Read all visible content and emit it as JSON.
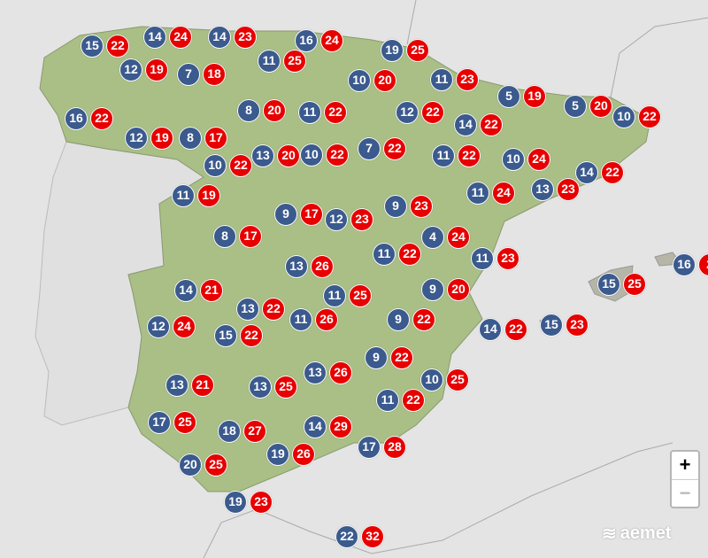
{
  "colors": {
    "min": "#3b5a8e",
    "max": "#e80000",
    "land": "#a9bf86",
    "sea": "#e4e4e4"
  },
  "stations": [
    {
      "min": "15",
      "max": "22"
    },
    {
      "min": "14",
      "max": "24"
    },
    {
      "min": "14",
      "max": "23"
    },
    {
      "min": "16",
      "max": "24"
    },
    {
      "min": "19",
      "max": "25"
    },
    {
      "min": "12",
      "max": "19"
    },
    {
      "min": "7",
      "max": "18"
    },
    {
      "min": "11",
      "max": "25"
    },
    {
      "min": "10",
      "max": "20"
    },
    {
      "min": "11",
      "max": "23"
    },
    {
      "min": "5",
      "max": "19"
    },
    {
      "min": "5",
      "max": "20"
    },
    {
      "min": "10",
      "max": "22"
    },
    {
      "min": "16",
      "max": "22"
    },
    {
      "min": "12",
      "max": "19"
    },
    {
      "min": "8",
      "max": "17"
    },
    {
      "min": "8",
      "max": "20"
    },
    {
      "min": "11",
      "max": "22"
    },
    {
      "min": "12",
      "max": "22"
    },
    {
      "min": "14",
      "max": "22"
    },
    {
      "min": "13",
      "max": "20"
    },
    {
      "min": "10",
      "max": "22"
    },
    {
      "min": "10",
      "max": "22"
    },
    {
      "min": "7",
      "max": "22"
    },
    {
      "min": "11",
      "max": "22"
    },
    {
      "min": "10",
      "max": "24"
    },
    {
      "min": "14",
      "max": "22"
    },
    {
      "min": "11",
      "max": "19"
    },
    {
      "min": "11",
      "max": "24"
    },
    {
      "min": "13",
      "max": "23"
    },
    {
      "min": "9",
      "max": "17"
    },
    {
      "min": "12",
      "max": "23"
    },
    {
      "min": "9",
      "max": "23"
    },
    {
      "min": "8",
      "max": "17"
    },
    {
      "min": "4",
      "max": "24"
    },
    {
      "min": "11",
      "max": "22"
    },
    {
      "min": "11",
      "max": "23"
    },
    {
      "min": "16",
      "max": "2"
    },
    {
      "min": "13",
      "max": "26"
    },
    {
      "min": "14",
      "max": "21"
    },
    {
      "min": "11",
      "max": "25"
    },
    {
      "min": "9",
      "max": "20"
    },
    {
      "min": "15",
      "max": "25"
    },
    {
      "min": "13",
      "max": "22"
    },
    {
      "min": "11",
      "max": "26"
    },
    {
      "min": "12",
      "max": "24"
    },
    {
      "min": "15",
      "max": "22"
    },
    {
      "min": "9",
      "max": "22"
    },
    {
      "min": "14",
      "max": "22"
    },
    {
      "min": "15",
      "max": "23"
    },
    {
      "min": "13",
      "max": "26"
    },
    {
      "min": "9",
      "max": "22"
    },
    {
      "min": "13",
      "max": "21"
    },
    {
      "min": "13",
      "max": "25"
    },
    {
      "min": "10",
      "max": "25"
    },
    {
      "min": "11",
      "max": "22"
    },
    {
      "min": "17",
      "max": "25"
    },
    {
      "min": "18",
      "max": "27"
    },
    {
      "min": "14",
      "max": "29"
    },
    {
      "min": "17",
      "max": "28"
    },
    {
      "min": "19",
      "max": "26"
    },
    {
      "min": "20",
      "max": "25"
    },
    {
      "min": "19",
      "max": "23"
    },
    {
      "min": "22",
      "max": "32"
    }
  ],
  "controls": {
    "zoom_in": "+",
    "zoom_out": "−"
  },
  "logo": "aemet"
}
